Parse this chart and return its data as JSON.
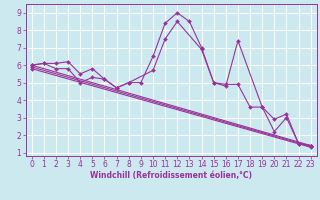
{
  "xlabel": "Windchill (Refroidissement éolien,°C)",
  "bg_color": "#cce9f0",
  "line_color": "#993399",
  "grid_color": "#ffffff",
  "xlim": [
    -0.5,
    23.5
  ],
  "ylim": [
    0.8,
    9.5
  ],
  "xticks": [
    0,
    1,
    2,
    3,
    4,
    5,
    6,
    7,
    8,
    9,
    10,
    11,
    12,
    13,
    14,
    15,
    16,
    17,
    18,
    19,
    20,
    21,
    22,
    23
  ],
  "yticks": [
    1,
    2,
    3,
    4,
    5,
    6,
    7,
    8,
    9
  ],
  "lines": [
    {
      "x": [
        0,
        1,
        2,
        3,
        4,
        5,
        6,
        7,
        8,
        9,
        10,
        11,
        12,
        13,
        14,
        15,
        16,
        17,
        18,
        19,
        20,
        21,
        22,
        23
      ],
      "y": [
        6.0,
        6.1,
        6.1,
        6.2,
        5.5,
        5.8,
        5.2,
        4.7,
        5.0,
        5.0,
        6.5,
        8.4,
        9.0,
        8.5,
        7.0,
        5.0,
        4.9,
        4.9,
        3.6,
        3.6,
        2.9,
        3.2,
        1.5,
        1.4
      ]
    },
    {
      "x": [
        0,
        1,
        2,
        3,
        4,
        5,
        6,
        7,
        8,
        10,
        11,
        12,
        14,
        15,
        16,
        17,
        19,
        20,
        21,
        22,
        23
      ],
      "y": [
        6.0,
        6.1,
        5.8,
        5.8,
        5.0,
        5.3,
        5.2,
        4.7,
        5.0,
        5.7,
        7.5,
        8.5,
        6.9,
        5.0,
        4.8,
        7.4,
        3.6,
        2.2,
        3.0,
        1.5,
        1.4
      ]
    },
    {
      "x": [
        0,
        23
      ],
      "y": [
        6.0,
        1.4
      ]
    },
    {
      "x": [
        0,
        23
      ],
      "y": [
        5.9,
        1.35
      ]
    },
    {
      "x": [
        0,
        23
      ],
      "y": [
        5.8,
        1.3
      ]
    }
  ]
}
